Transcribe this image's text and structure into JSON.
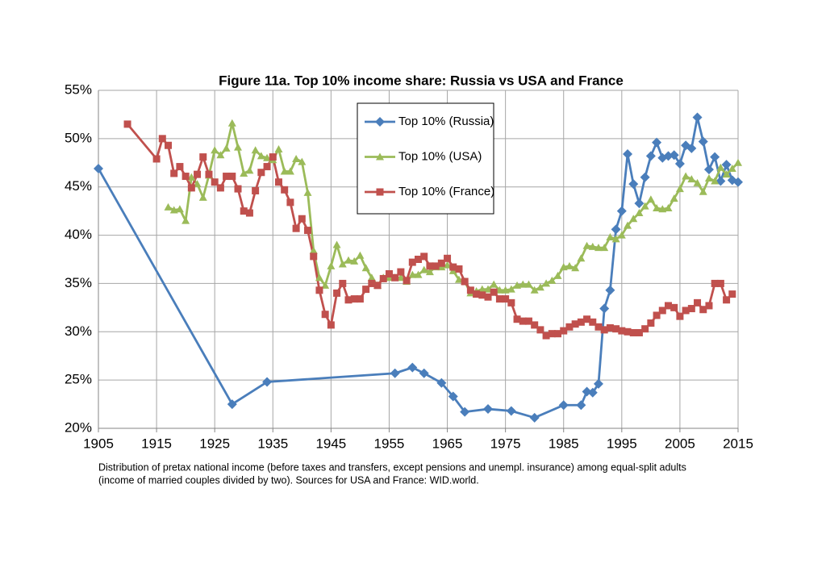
{
  "chart_data": {
    "type": "line",
    "title": "Figure 11a. Top 10% income share: Russia vs USA and France",
    "xlim": [
      1905,
      2015
    ],
    "xticks": [
      1905,
      1915,
      1925,
      1935,
      1945,
      1955,
      1965,
      1975,
      1985,
      1995,
      2005,
      2015
    ],
    "ylim": [
      20,
      55
    ],
    "yticks": [
      {
        "value": 20,
        "label": "20%"
      },
      {
        "value": 25,
        "label": "25%"
      },
      {
        "value": 30,
        "label": "30%"
      },
      {
        "value": 35,
        "label": "35%"
      },
      {
        "value": 40,
        "label": "40%"
      },
      {
        "value": 45,
        "label": "45%"
      },
      {
        "value": 50,
        "label": "50%"
      },
      {
        "value": 55,
        "label": "55%"
      }
    ],
    "grid": true,
    "legend": "top-center",
    "notes": [
      "Distribution of pretax national income (before taxes and transfers, except pensions and unempl. insurance) among equal-split adults",
      "(income of married couples divided by two). Sources for USA and France: WID.world."
    ],
    "series": [
      {
        "name": "Top 10% (Russia)",
        "color": "#4a7ebb",
        "marker": "diamond",
        "x": [
          1905,
          1928,
          1934,
          1956,
          1959,
          1961,
          1964,
          1966,
          1968,
          1972,
          1976,
          1980,
          1985,
          1988,
          1989,
          1990,
          1991,
          1992,
          1993,
          1994,
          1995,
          1996,
          1997,
          1998,
          1999,
          2000,
          2001,
          2002,
          2003,
          2004,
          2005,
          2006,
          2007,
          2008,
          2009,
          2010,
          2011,
          2012,
          2013,
          2014,
          2015
        ],
        "values": [
          46.9,
          22.5,
          24.8,
          25.7,
          26.3,
          25.7,
          24.7,
          23.3,
          21.7,
          22.0,
          21.8,
          21.1,
          22.4,
          22.4,
          23.8,
          23.7,
          24.6,
          32.4,
          34.3,
          40.6,
          42.5,
          48.4,
          45.3,
          43.3,
          46.0,
          48.2,
          49.6,
          48.0,
          48.2,
          48.3,
          47.4,
          49.3,
          49.0,
          52.2,
          49.7,
          46.8,
          48.1,
          45.6,
          47.3,
          45.7,
          45.5
        ]
      },
      {
        "name": "Top 10% (USA)",
        "color": "#9bbb59",
        "marker": "triangle",
        "x": [
          1917,
          1918,
          1919,
          1920,
          1921,
          1922,
          1923,
          1924,
          1925,
          1926,
          1927,
          1928,
          1929,
          1930,
          1931,
          1932,
          1933,
          1934,
          1935,
          1936,
          1937,
          1938,
          1939,
          1940,
          1941,
          1942,
          1943,
          1944,
          1945,
          1946,
          1947,
          1948,
          1949,
          1950,
          1951,
          1952,
          1953,
          1954,
          1955,
          1956,
          1957,
          1958,
          1959,
          1960,
          1961,
          1962,
          1963,
          1964,
          1965,
          1966,
          1967,
          1968,
          1969,
          1970,
          1971,
          1972,
          1973,
          1974,
          1975,
          1976,
          1977,
          1978,
          1979,
          1980,
          1981,
          1982,
          1983,
          1984,
          1985,
          1986,
          1987,
          1988,
          1989,
          1990,
          1991,
          1992,
          1993,
          1994,
          1995,
          1996,
          1997,
          1998,
          1999,
          2000,
          2001,
          2002,
          2003,
          2004,
          2005,
          2006,
          2007,
          2008,
          2009,
          2010,
          2011,
          2012,
          2013,
          2014,
          2015
        ],
        "values": [
          42.9,
          42.6,
          42.7,
          41.5,
          46.0,
          45.3,
          43.9,
          46.2,
          48.8,
          48.3,
          49.0,
          51.6,
          49.1,
          46.4,
          46.7,
          48.8,
          48.2,
          48.0,
          47.8,
          48.9,
          46.6,
          46.6,
          47.9,
          47.6,
          44.4,
          38.4,
          35.6,
          34.8,
          36.8,
          39.0,
          37.0,
          37.4,
          37.3,
          37.9,
          36.6,
          35.6,
          34.8,
          35.6,
          35.6,
          35.6,
          35.6,
          35.2,
          35.9,
          35.9,
          36.4,
          36.2,
          36.7,
          36.7,
          36.9,
          36.3,
          35.4,
          35.2,
          34.0,
          34.2,
          34.4,
          34.4,
          34.9,
          34.3,
          34.3,
          34.4,
          34.8,
          34.9,
          34.9,
          34.3,
          34.6,
          35.0,
          35.3,
          35.8,
          36.7,
          36.8,
          36.6,
          37.6,
          38.9,
          38.8,
          38.7,
          38.7,
          39.8,
          39.6,
          40.0,
          41.0,
          41.7,
          42.3,
          43.0,
          43.7,
          42.8,
          42.7,
          42.8,
          43.8,
          44.8,
          46.1,
          45.8,
          45.4,
          44.5,
          45.9,
          45.6,
          47.0,
          46.3,
          46.9,
          47.5
        ]
      },
      {
        "name": "Top 10% (France)",
        "color": "#c0504d",
        "marker": "square",
        "x": [
          1910,
          1915,
          1916,
          1917,
          1918,
          1919,
          1920,
          1921,
          1922,
          1923,
          1924,
          1925,
          1926,
          1927,
          1928,
          1929,
          1930,
          1931,
          1932,
          1933,
          1934,
          1935,
          1936,
          1937,
          1938,
          1939,
          1940,
          1941,
          1942,
          1943,
          1944,
          1945,
          1946,
          1947,
          1948,
          1949,
          1950,
          1951,
          1952,
          1953,
          1954,
          1955,
          1956,
          1957,
          1958,
          1959,
          1960,
          1961,
          1962,
          1963,
          1964,
          1965,
          1966,
          1967,
          1968,
          1969,
          1970,
          1971,
          1972,
          1973,
          1974,
          1975,
          1976,
          1977,
          1978,
          1979,
          1980,
          1981,
          1982,
          1983,
          1984,
          1985,
          1986,
          1987,
          1988,
          1989,
          1990,
          1991,
          1992,
          1993,
          1994,
          1995,
          1996,
          1997,
          1998,
          1999,
          2000,
          2001,
          2002,
          2003,
          2004,
          2005,
          2006,
          2007,
          2008,
          2009,
          2010,
          2011,
          2012,
          2013,
          2014
        ],
        "values": [
          51.5,
          47.9,
          50.0,
          49.3,
          46.4,
          47.1,
          46.1,
          44.9,
          46.3,
          48.1,
          46.3,
          45.5,
          44.9,
          46.1,
          46.1,
          44.8,
          42.5,
          42.3,
          44.6,
          46.5,
          47.1,
          48.1,
          45.5,
          44.7,
          43.4,
          40.7,
          41.7,
          40.5,
          37.8,
          34.3,
          31.8,
          30.7,
          34.0,
          35.0,
          33.3,
          33.4,
          33.4,
          34.4,
          35.0,
          34.8,
          35.5,
          36.0,
          35.6,
          36.2,
          35.3,
          37.2,
          37.5,
          37.8,
          36.8,
          36.8,
          37.1,
          37.6,
          36.7,
          36.5,
          35.2,
          34.3,
          33.9,
          33.8,
          33.6,
          34.1,
          33.4,
          33.4,
          33.0,
          31.3,
          31.1,
          31.1,
          30.7,
          30.2,
          29.6,
          29.8,
          29.8,
          30.1,
          30.5,
          30.8,
          31.0,
          31.3,
          31.0,
          30.5,
          30.2,
          30.4,
          30.3,
          30.1,
          30.0,
          29.9,
          29.9,
          30.3,
          30.9,
          31.7,
          32.2,
          32.7,
          32.5,
          31.6,
          32.2,
          32.4,
          33.0,
          32.3,
          32.7,
          35.0,
          35.0,
          33.3,
          33.9
        ]
      }
    ]
  }
}
